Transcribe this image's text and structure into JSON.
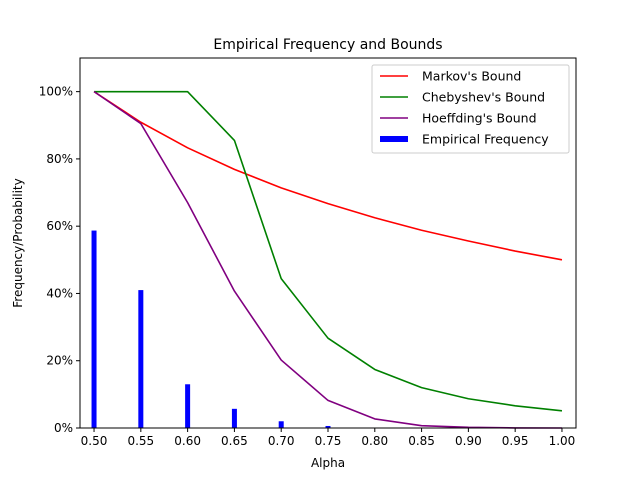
{
  "chart_data": {
    "type": "line",
    "title": "Empirical Frequency and Bounds",
    "xlabel": "Alpha",
    "ylabel": "Frequency/Probability",
    "xlim": [
      0.485,
      1.015
    ],
    "ylim": [
      0,
      1.1
    ],
    "x_ticks": [
      "0.50",
      "0.55",
      "0.60",
      "0.65",
      "0.70",
      "0.75",
      "0.80",
      "0.85",
      "0.90",
      "0.95",
      "1.00"
    ],
    "y_ticks": [
      "0%",
      "20%",
      "40%",
      "60%",
      "80%",
      "100%"
    ],
    "grid": false,
    "legend_position": "top-right",
    "x": [
      0.5,
      0.55,
      0.6,
      0.65,
      0.7,
      0.75,
      0.8,
      0.85,
      0.9,
      0.95,
      1.0
    ],
    "series": [
      {
        "name": "Markov's Bound",
        "kind": "line",
        "color": "#ff0000",
        "values": [
          1.0,
          0.909,
          0.833,
          0.769,
          0.714,
          0.667,
          0.625,
          0.588,
          0.556,
          0.526,
          0.5
        ]
      },
      {
        "name": "Chebyshev's Bound",
        "kind": "line",
        "color": "#008000",
        "values": [
          1.0,
          1.0,
          1.0,
          0.855,
          0.444,
          0.267,
          0.174,
          0.12,
          0.087,
          0.066,
          0.051
        ]
      },
      {
        "name": "Hoeffding's Bound",
        "kind": "line",
        "color": "#800080",
        "values": [
          1.0,
          0.905,
          0.67,
          0.407,
          0.202,
          0.082,
          0.027,
          0.007,
          0.002,
          0.0003,
          0.0
        ]
      },
      {
        "name": "Empirical Frequency",
        "kind": "bar",
        "color": "#0000ff",
        "values": [
          0.587,
          0.41,
          0.13,
          0.057,
          0.02,
          0.006,
          0.0,
          0.0,
          0.0,
          0.0,
          0.0
        ]
      }
    ]
  }
}
